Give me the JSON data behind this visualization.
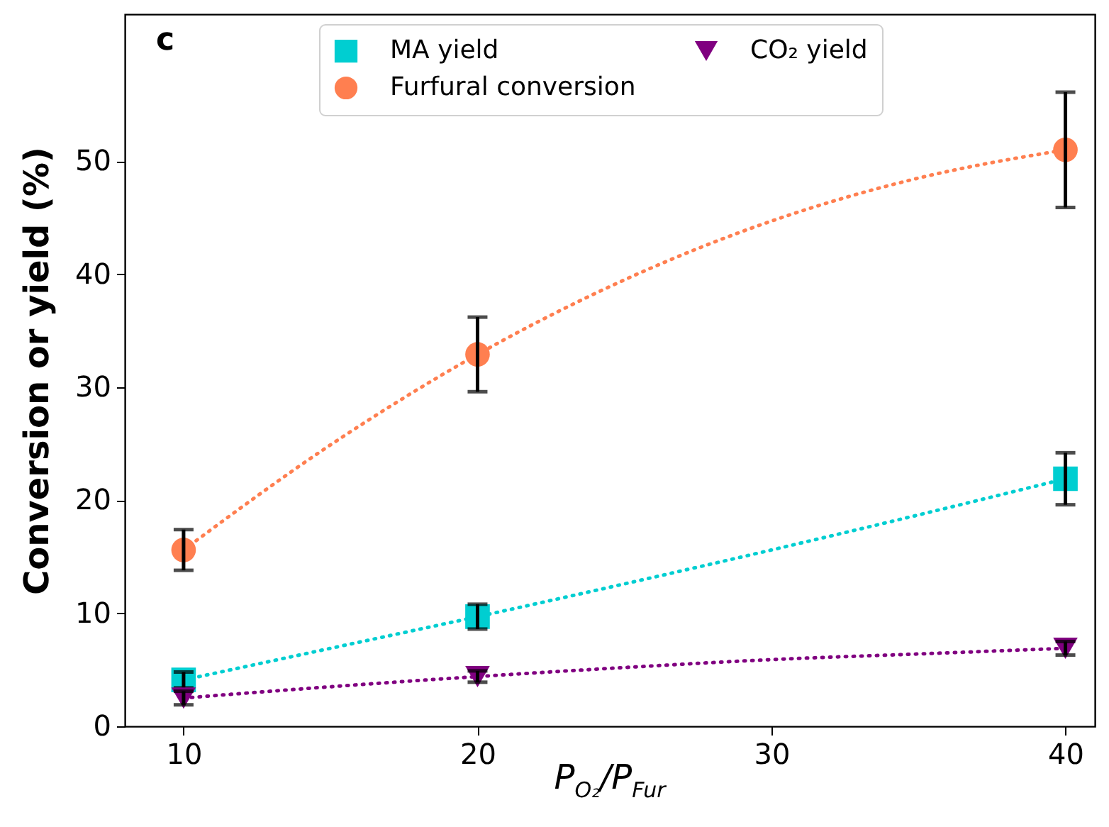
{
  "chart_data": {
    "type": "scatter",
    "xlabel": "P$_{O₂}$/P$_{Fur}$",
    "ylabel": "Conversion or yield (%)",
    "annotations": [
      "c"
    ],
    "x": [
      10,
      20,
      40
    ],
    "series": [
      {
        "name": "MA yield",
        "marker": "square",
        "color": "#00ced1",
        "values": [
          4.1,
          9.7,
          21.9
        ],
        "errors": [
          0.7,
          1.1,
          2.3
        ]
      },
      {
        "name": "Furfural conversion",
        "marker": "circle",
        "color": "#ff7f50",
        "values": [
          15.6,
          32.9,
          51.0
        ],
        "errors": [
          1.8,
          3.3,
          5.1
        ]
      },
      {
        "name": "CO₂ yield",
        "marker": "triangle",
        "color": "#800080",
        "values": [
          2.5,
          4.4,
          6.9
        ],
        "errors": [
          0.6,
          0.5,
          0.6
        ]
      },
      {
        "type": "line",
        "line_style": "dotted",
        "color": "#00ced1",
        "x": [
          10,
          15,
          20,
          25,
          30,
          35,
          40
        ],
        "values": [
          4.1,
          6.9,
          9.7,
          12.6,
          15.6,
          18.7,
          21.9
        ]
      },
      {
        "type": "line",
        "line_style": "dotted",
        "color": "#ff7f50",
        "x": [
          10,
          15,
          20,
          25,
          30,
          35,
          40
        ],
        "values": [
          15.6,
          24.9,
          32.9,
          39.5,
          44.7,
          48.5,
          51.0
        ]
      },
      {
        "type": "line",
        "line_style": "dotted",
        "color": "#800080",
        "x": [
          10,
          15,
          20,
          25,
          30,
          35,
          40
        ],
        "values": [
          2.5,
          3.5,
          4.4,
          5.2,
          5.9,
          6.4,
          6.9
        ]
      }
    ],
    "xlim": [
      8,
      41
    ],
    "ylim": [
      0,
      63
    ],
    "xticks": [
      10,
      20,
      30,
      40
    ],
    "yticks": [
      0,
      10,
      20,
      30,
      40,
      50
    ],
    "legend": "top",
    "grid": false
  }
}
